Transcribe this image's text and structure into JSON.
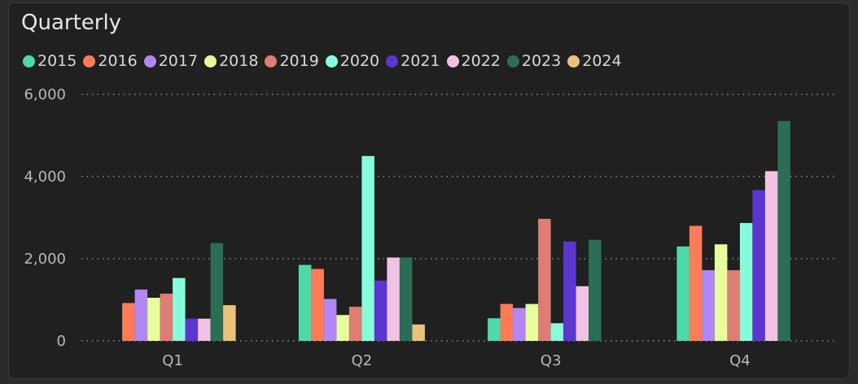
{
  "header": {
    "title": "Quarterly"
  },
  "chart_data": {
    "type": "bar",
    "title": "Quarterly",
    "xlabel": "",
    "ylabel": "",
    "categories": [
      "Q1",
      "Q2",
      "Q3",
      "Q4"
    ],
    "ylim": [
      0,
      6000
    ],
    "yticks": [
      0,
      2000,
      4000,
      6000
    ],
    "ytick_labels": [
      "0",
      "2,000",
      "4,000",
      "6,000"
    ],
    "grid": true,
    "legend_position": "top-left",
    "series": [
      {
        "name": "2015",
        "color": "#4ddaa8",
        "values": [
          null,
          1850,
          550,
          2300
        ]
      },
      {
        "name": "2016",
        "color": "#fd7c58",
        "values": [
          920,
          1750,
          900,
          2800
        ]
      },
      {
        "name": "2017",
        "color": "#b187f4",
        "values": [
          1250,
          1020,
          800,
          1720
        ]
      },
      {
        "name": "2018",
        "color": "#e8fd9b",
        "values": [
          1050,
          630,
          900,
          2350
        ]
      },
      {
        "name": "2019",
        "color": "#de7d74",
        "values": [
          1150,
          830,
          2970,
          1720
        ]
      },
      {
        "name": "2020",
        "color": "#88fbdc",
        "values": [
          1530,
          4500,
          430,
          2870
        ]
      },
      {
        "name": "2021",
        "color": "#5b36cf",
        "values": [
          540,
          1470,
          2420,
          3670
        ]
      },
      {
        "name": "2022",
        "color": "#f1c2e3",
        "values": [
          540,
          2030,
          1330,
          4130
        ]
      },
      {
        "name": "2023",
        "color": "#2b6e55",
        "values": [
          2380,
          2030,
          2460,
          5350
        ]
      },
      {
        "name": "2024",
        "color": "#ebc27c",
        "values": [
          870,
          400,
          null,
          null
        ]
      }
    ]
  }
}
